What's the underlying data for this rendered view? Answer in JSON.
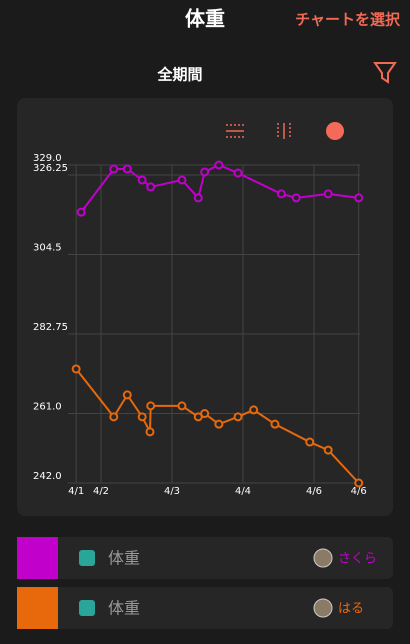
{
  "header": {
    "title": "体重",
    "action": "チャートを選択"
  },
  "period": "全期間",
  "chart_data": {
    "type": "line",
    "x_label_ticks": null,
    "xlim": [
      1.6,
      5.7
    ],
    "xticks": [
      {
        "value": 1.65,
        "label": "4/1"
      },
      {
        "value": 2,
        "label": "4/2"
      },
      {
        "value": 3,
        "label": "4/3"
      },
      {
        "value": 4,
        "label": "4/4"
      },
      {
        "value": 5,
        "label": "4/6"
      },
      {
        "value": 5.63,
        "label": "4/6"
      }
    ],
    "ylim": [
      242,
      329
    ],
    "yticks": [
      {
        "value": 242,
        "label": "242.0"
      },
      {
        "value": 261,
        "label": "261.0"
      },
      282.75,
      304.5,
      326.25,
      {
        "value": 329,
        "label": "329.0"
      }
    ],
    "grid": true,
    "series": [
      {
        "name": "さくら",
        "label": "体重",
        "color": "#c100cc",
        "x": [
          1.72,
          2.18,
          2.37,
          2.58,
          2.7,
          3.14,
          3.37,
          3.46,
          3.66,
          3.93,
          4.54,
          4.75,
          5.2,
          5.63
        ],
        "values": [
          316.1,
          327.9,
          327.9,
          324.9,
          323.0,
          324.9,
          320.0,
          327.1,
          329.0,
          326.8,
          321.1,
          320.0,
          321.1,
          320.0
        ]
      },
      {
        "name": "はる",
        "label": "体重",
        "color": "#e8680c",
        "x": [
          1.65,
          2.18,
          2.37,
          2.58,
          2.69,
          2.7,
          3.14,
          3.37,
          3.46,
          3.66,
          3.93,
          4.15,
          4.45,
          4.94,
          5.2,
          5.63
        ],
        "values": [
          273.2,
          260.1,
          266.1,
          260.1,
          256.0,
          263.1,
          263.1,
          260.1,
          261.0,
          258.1,
          260.1,
          262.0,
          258.1,
          253.2,
          251.0,
          242.0
        ]
      }
    ]
  }
}
